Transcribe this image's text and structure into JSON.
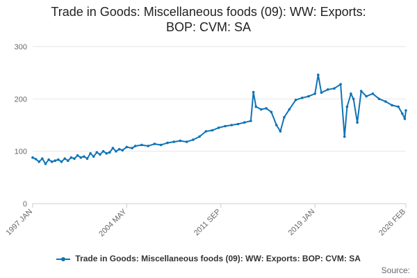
{
  "chart_data": {
    "type": "line",
    "title_lines": [
      "Trade in Goods: Miscellaneous foods (09): WW: Exports:",
      "BOP: CVM: SA"
    ],
    "xlabel": "",
    "ylabel": "",
    "ylim": [
      0,
      300
    ],
    "yticks": [
      {
        "value": 0,
        "label": "0"
      },
      {
        "value": 100,
        "label": "100"
      },
      {
        "value": 200,
        "label": "200"
      },
      {
        "value": 300,
        "label": "300"
      }
    ],
    "xrange": [
      1997.0,
      2026.083
    ],
    "xticks": [
      {
        "value": 1997.0,
        "label": "1997 JAN"
      },
      {
        "value": 2004.333,
        "label": "2004 MAY"
      },
      {
        "value": 2011.667,
        "label": "2011 SEP"
      },
      {
        "value": 2019.0,
        "label": "2019 JAN"
      },
      {
        "value": 2026.083,
        "label": "2026 FEB"
      }
    ],
    "series": [
      {
        "name": "Trade in Goods: Miscellaneous foods (09): WW: Exports: BOP: CVM: SA",
        "color": "#0f73b6",
        "points": [
          [
            1997.0,
            88
          ],
          [
            1997.25,
            85
          ],
          [
            1997.5,
            80
          ],
          [
            1997.75,
            86
          ],
          [
            1998.0,
            76
          ],
          [
            1998.25,
            84
          ],
          [
            1998.5,
            80
          ],
          [
            1998.75,
            82
          ],
          [
            1999.0,
            84
          ],
          [
            1999.25,
            80
          ],
          [
            1999.5,
            86
          ],
          [
            1999.75,
            82
          ],
          [
            2000.0,
            88
          ],
          [
            2000.25,
            86
          ],
          [
            2000.5,
            92
          ],
          [
            2000.75,
            88
          ],
          [
            2001.0,
            90
          ],
          [
            2001.25,
            86
          ],
          [
            2001.5,
            96
          ],
          [
            2001.75,
            90
          ],
          [
            2002.0,
            98
          ],
          [
            2002.25,
            94
          ],
          [
            2002.5,
            100
          ],
          [
            2002.75,
            96
          ],
          [
            2003.0,
            98
          ],
          [
            2003.25,
            106
          ],
          [
            2003.5,
            100
          ],
          [
            2003.75,
            104
          ],
          [
            2004.0,
            102
          ],
          [
            2004.33,
            108
          ],
          [
            2004.75,
            106
          ],
          [
            2005.0,
            110
          ],
          [
            2005.5,
            112
          ],
          [
            2006.0,
            110
          ],
          [
            2006.5,
            114
          ],
          [
            2007.0,
            112
          ],
          [
            2007.5,
            116
          ],
          [
            2008.0,
            118
          ],
          [
            2008.5,
            120
          ],
          [
            2009.0,
            118
          ],
          [
            2009.5,
            122
          ],
          [
            2010.0,
            128
          ],
          [
            2010.5,
            138
          ],
          [
            2011.0,
            140
          ],
          [
            2011.5,
            145
          ],
          [
            2012.0,
            148
          ],
          [
            2012.5,
            150
          ],
          [
            2013.0,
            152
          ],
          [
            2013.5,
            155
          ],
          [
            2014.0,
            158
          ],
          [
            2014.2,
            213
          ],
          [
            2014.4,
            185
          ],
          [
            2014.8,
            180
          ],
          [
            2015.2,
            182
          ],
          [
            2015.6,
            175
          ],
          [
            2016.0,
            150
          ],
          [
            2016.3,
            138
          ],
          [
            2016.6,
            165
          ],
          [
            2017.0,
            180
          ],
          [
            2017.5,
            198
          ],
          [
            2018.0,
            202
          ],
          [
            2018.5,
            205
          ],
          [
            2019.0,
            210
          ],
          [
            2019.25,
            246
          ],
          [
            2019.5,
            212
          ],
          [
            2020.0,
            218
          ],
          [
            2020.5,
            220
          ],
          [
            2021.0,
            228
          ],
          [
            2021.3,
            128
          ],
          [
            2021.5,
            185
          ],
          [
            2021.8,
            210
          ],
          [
            2022.0,
            200
          ],
          [
            2022.3,
            155
          ],
          [
            2022.6,
            215
          ],
          [
            2023.0,
            205
          ],
          [
            2023.5,
            210
          ],
          [
            2024.0,
            200
          ],
          [
            2024.5,
            195
          ],
          [
            2025.0,
            188
          ],
          [
            2025.5,
            185
          ],
          [
            2025.8,
            172
          ],
          [
            2026.0,
            162
          ],
          [
            2026.083,
            178
          ]
        ]
      }
    ],
    "legend_position": "bottom",
    "source_label": "Source:"
  }
}
